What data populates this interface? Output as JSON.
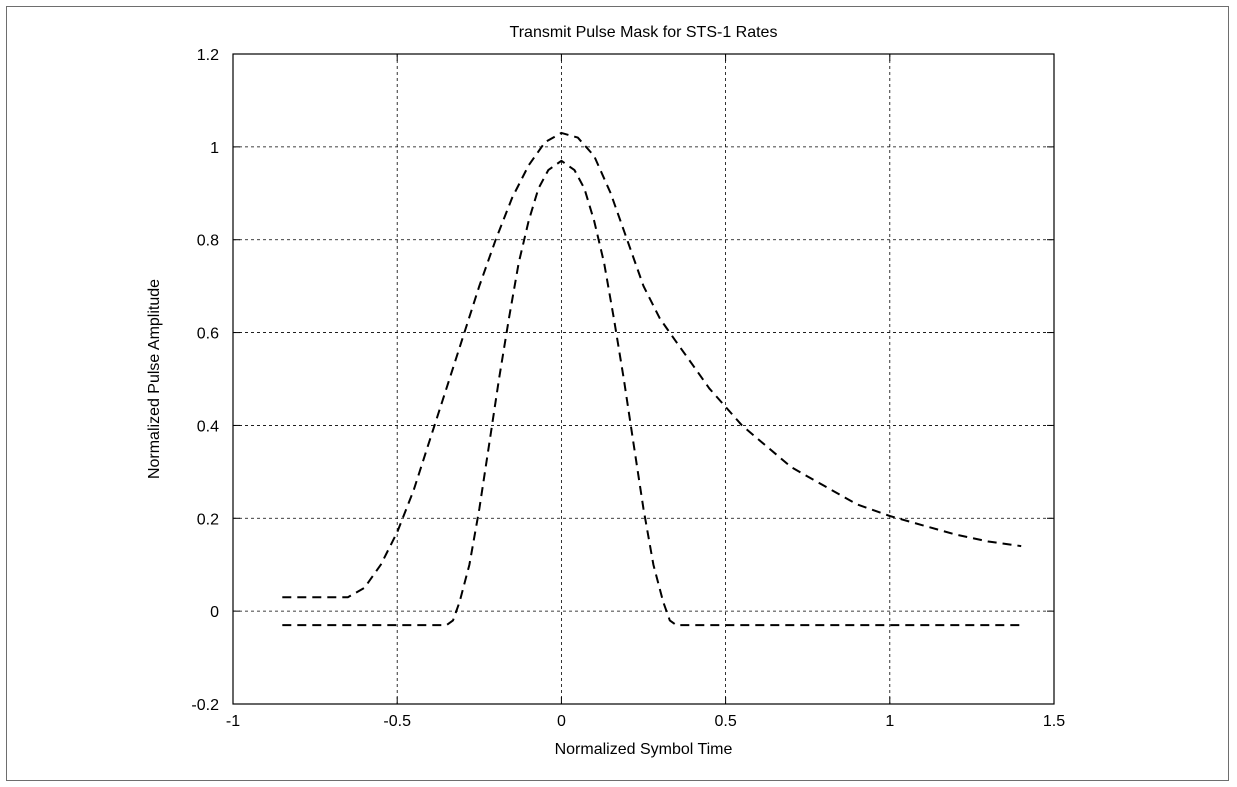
{
  "chart_data": {
    "type": "line",
    "title": "Transmit Pulse Mask for STS-1 Rates",
    "xlabel": "Normalized Symbol Time",
    "ylabel": "Normalized Pulse Amplitude",
    "xlim": [
      -1,
      1.5
    ],
    "ylim": [
      -0.2,
      1.2
    ],
    "xticks": [
      -1,
      -0.5,
      0,
      0.5,
      1,
      1.5
    ],
    "xtick_labels": [
      "-1",
      "-0.5",
      "0",
      "0.5",
      "1",
      "1.5"
    ],
    "yticks": [
      -0.2,
      0,
      0.2,
      0.4,
      0.6,
      0.8,
      1,
      1.2
    ],
    "ytick_labels": [
      "-0.2",
      "0",
      "0.2",
      "0.4",
      "0.6",
      "0.8",
      "1",
      "1.2"
    ],
    "grid": true,
    "line_style": "dashed",
    "line_color": "#000000",
    "grid_color": "#000000",
    "series": [
      {
        "points": [
          [
            -0.85,
            0.03
          ],
          [
            -0.65,
            0.03
          ],
          [
            -0.6,
            0.05
          ],
          [
            -0.55,
            0.1
          ],
          [
            -0.5,
            0.17
          ],
          [
            -0.45,
            0.26
          ],
          [
            -0.4,
            0.37
          ],
          [
            -0.35,
            0.48
          ],
          [
            -0.3,
            0.59
          ],
          [
            -0.25,
            0.7
          ],
          [
            -0.2,
            0.8
          ],
          [
            -0.15,
            0.89
          ],
          [
            -0.1,
            0.96
          ],
          [
            -0.05,
            1.01
          ],
          [
            0,
            1.03
          ],
          [
            0.05,
            1.02
          ],
          [
            0.1,
            0.98
          ],
          [
            0.15,
            0.9
          ],
          [
            0.2,
            0.8
          ],
          [
            0.25,
            0.7
          ],
          [
            0.3,
            0.63
          ],
          [
            0.35,
            0.58
          ],
          [
            0.4,
            0.53
          ],
          [
            0.45,
            0.48
          ],
          [
            0.5,
            0.44
          ],
          [
            0.55,
            0.4
          ],
          [
            0.6,
            0.37
          ],
          [
            0.65,
            0.34
          ],
          [
            0.7,
            0.31
          ],
          [
            0.8,
            0.27
          ],
          [
            0.9,
            0.23
          ],
          [
            1,
            0.205
          ],
          [
            1.1,
            0.185
          ],
          [
            1.2,
            0.165
          ],
          [
            1.3,
            0.15
          ],
          [
            1.4,
            0.14
          ]
        ]
      },
      {
        "points": [
          [
            -0.85,
            -0.03
          ],
          [
            -0.35,
            -0.03
          ],
          [
            -0.33,
            -0.02
          ],
          [
            -0.31,
            0.02
          ],
          [
            -0.28,
            0.1
          ],
          [
            -0.25,
            0.22
          ],
          [
            -0.22,
            0.36
          ],
          [
            -0.19,
            0.5
          ],
          [
            -0.16,
            0.63
          ],
          [
            -0.13,
            0.75
          ],
          [
            -0.1,
            0.84
          ],
          [
            -0.07,
            0.91
          ],
          [
            -0.04,
            0.95
          ],
          [
            0,
            0.97
          ],
          [
            0.04,
            0.95
          ],
          [
            0.07,
            0.91
          ],
          [
            0.1,
            0.84
          ],
          [
            0.13,
            0.75
          ],
          [
            0.16,
            0.63
          ],
          [
            0.19,
            0.5
          ],
          [
            0.22,
            0.36
          ],
          [
            0.25,
            0.22
          ],
          [
            0.28,
            0.1
          ],
          [
            0.31,
            0.02
          ],
          [
            0.33,
            -0.02
          ],
          [
            0.35,
            -0.03
          ],
          [
            1.4,
            -0.03
          ]
        ]
      }
    ]
  }
}
